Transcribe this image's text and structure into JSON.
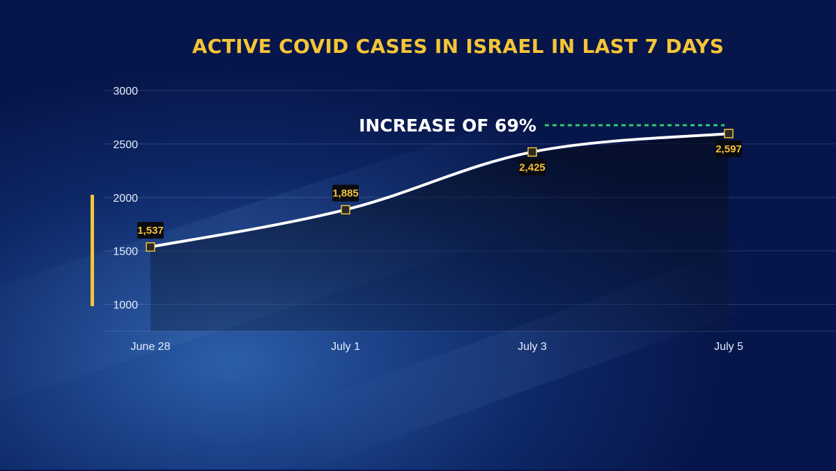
{
  "chart_data": {
    "type": "area",
    "title": "ACTIVE COVID CASES IN ISRAEL IN LAST 7 DAYS",
    "categories": [
      "June 28",
      "July 1",
      "July 3",
      "July 5"
    ],
    "values": [
      1537,
      1885,
      2425,
      2597
    ],
    "data_labels": [
      "1,537",
      "1,885",
      "2,425",
      "2,597"
    ],
    "yticks": [
      "3000",
      "2500",
      "2000",
      "1500",
      "1000"
    ],
    "ylim": [
      750,
      3000
    ],
    "grid": true,
    "annotation": "INCREASE OF 69%",
    "colors": {
      "title": "#f5c437",
      "line": "#ffffff",
      "labels": "#f5c437",
      "annotation_line": "#2ecc71"
    }
  }
}
